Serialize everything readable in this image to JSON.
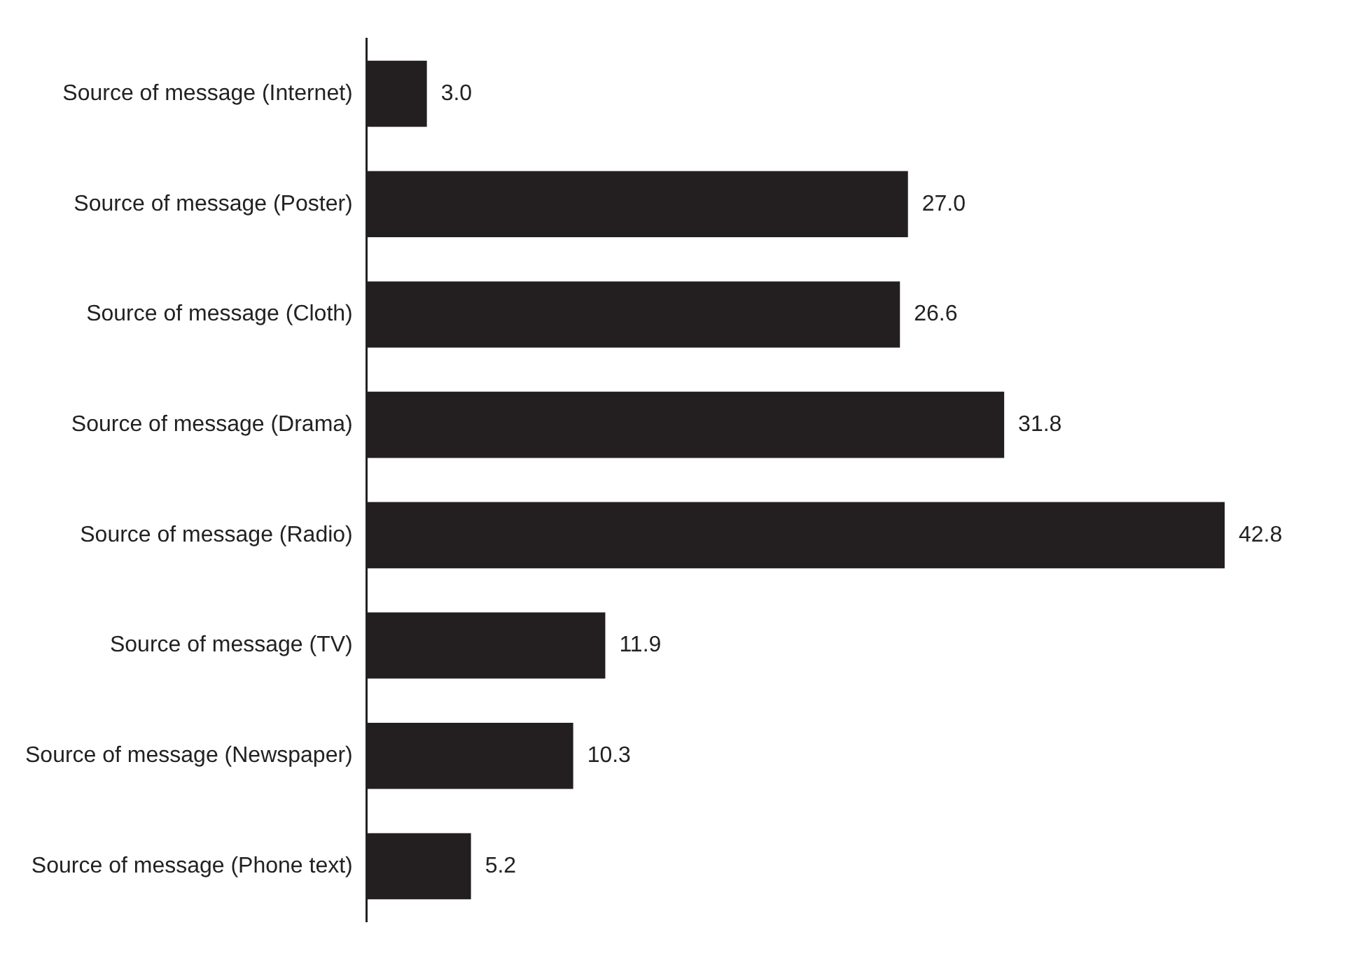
{
  "chart_data": {
    "type": "bar",
    "orientation": "horizontal",
    "categories": [
      "Source of message (Internet)",
      "Source of message (Poster)",
      "Source of message (Cloth)",
      "Source of message (Drama)",
      "Source of message (Radio)",
      "Source of message (TV)",
      "Source of message (Newspaper)",
      "Source of message (Phone text)"
    ],
    "values": [
      3.0,
      27.0,
      26.6,
      31.8,
      42.8,
      11.9,
      10.3,
      5.2
    ],
    "value_labels": [
      "3.0",
      "27.0",
      "26.6",
      "31.8",
      "42.8",
      "11.9",
      "10.3",
      "5.2"
    ],
    "color": "#231f20",
    "grid": false,
    "legend": false,
    "tick_labels": "y"
  }
}
